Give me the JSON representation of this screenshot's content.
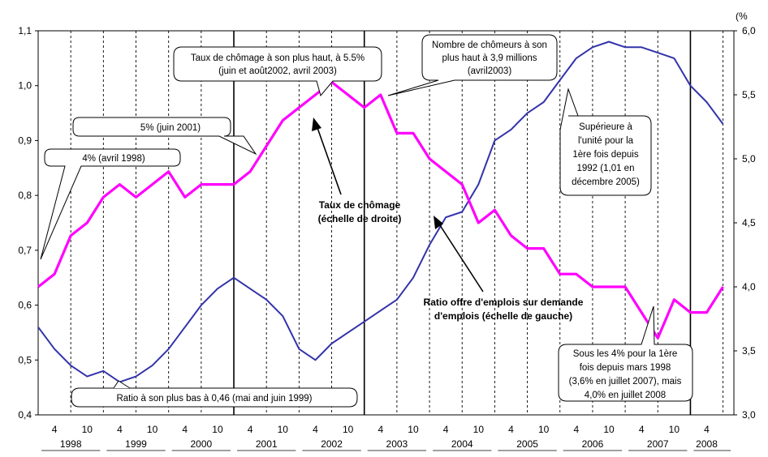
{
  "chart_data": {
    "type": "line",
    "title": "",
    "left_axis": {
      "ticks": [
        "0,4",
        "0,5",
        "0,6",
        "0,7",
        "0,8",
        "0,9",
        "1,0",
        "1,1"
      ],
      "range": [
        0.4,
        1.1
      ]
    },
    "right_axis": {
      "unit": "(%",
      "ticks": [
        "3,0",
        "3,5",
        "4,0",
        "4,5",
        "5,0",
        "5,5",
        "6,0"
      ],
      "range": [
        3.0,
        6.0
      ]
    },
    "x_axis": {
      "month_labels": [
        "4",
        "10"
      ],
      "years": [
        "1998",
        "1999",
        "2000",
        "2001",
        "2002",
        "2003",
        "2004",
        "2005",
        "2006",
        "2007",
        "2008"
      ]
    },
    "series": [
      {
        "name": "Ratio offre d'emplois sur demande d'emplois (échelle de gauche)",
        "axis": "left",
        "color": "#3333aa",
        "x": [
          "1998-01",
          "1998-04",
          "1998-07",
          "1998-10",
          "1999-01",
          "1999-04",
          "1999-07",
          "1999-10",
          "2000-01",
          "2000-04",
          "2000-07",
          "2000-10",
          "2001-01",
          "2001-04",
          "2001-07",
          "2001-10",
          "2002-01",
          "2002-04",
          "2002-07",
          "2002-10",
          "2003-01",
          "2003-04",
          "2003-07",
          "2003-10",
          "2004-01",
          "2004-04",
          "2004-07",
          "2004-10",
          "2005-01",
          "2005-04",
          "2005-07",
          "2005-10",
          "2006-01",
          "2006-04",
          "2006-07",
          "2006-10",
          "2007-01",
          "2007-04",
          "2007-07",
          "2007-10",
          "2008-01",
          "2008-04",
          "2008-07"
        ],
        "values": [
          0.56,
          0.52,
          0.49,
          0.47,
          0.48,
          0.46,
          0.47,
          0.49,
          0.52,
          0.56,
          0.6,
          0.63,
          0.65,
          0.63,
          0.61,
          0.58,
          0.52,
          0.5,
          0.53,
          0.55,
          0.57,
          0.59,
          0.61,
          0.65,
          0.71,
          0.76,
          0.77,
          0.82,
          0.9,
          0.92,
          0.95,
          0.97,
          1.01,
          1.05,
          1.07,
          1.08,
          1.07,
          1.07,
          1.06,
          1.05,
          1.0,
          0.97,
          0.93
        ]
      },
      {
        "name": "Taux de chômage (échelle de droite)",
        "axis": "right",
        "color": "#ff00ff",
        "x": [
          "1998-01",
          "1998-04",
          "1998-07",
          "1998-10",
          "1999-01",
          "1999-04",
          "1999-07",
          "1999-10",
          "2000-01",
          "2000-04",
          "2000-07",
          "2000-10",
          "2001-01",
          "2001-04",
          "2001-07",
          "2001-10",
          "2002-01",
          "2002-04",
          "2002-07",
          "2002-10",
          "2003-01",
          "2003-04",
          "2003-07",
          "2003-10",
          "2004-01",
          "2004-04",
          "2004-07",
          "2004-10",
          "2005-01",
          "2005-04",
          "2005-07",
          "2005-10",
          "2006-01",
          "2006-04",
          "2006-07",
          "2006-10",
          "2007-01",
          "2007-04",
          "2007-07",
          "2007-10",
          "2008-01",
          "2008-04",
          "2008-07"
        ],
        "values": [
          4.0,
          4.1,
          4.4,
          4.5,
          4.7,
          4.8,
          4.7,
          4.8,
          4.9,
          4.7,
          4.8,
          4.8,
          4.8,
          4.9,
          5.1,
          5.3,
          5.4,
          5.5,
          5.6,
          5.5,
          5.4,
          5.5,
          5.2,
          5.2,
          5.0,
          4.9,
          4.8,
          4.5,
          4.6,
          4.4,
          4.3,
          4.3,
          4.1,
          4.1,
          4.0,
          4.0,
          4.0,
          3.8,
          3.6,
          3.9,
          3.8,
          3.8,
          4.0
        ]
      }
    ],
    "annotations": [
      {
        "id": "a1",
        "lines": [
          "4% (avril 1998)"
        ]
      },
      {
        "id": "a2",
        "lines": [
          "5% (juin 2001)"
        ]
      },
      {
        "id": "a3",
        "lines": [
          "Taux de chômage à son plus haut, à 5.5%",
          "(juin et août2002, avril 2003)"
        ]
      },
      {
        "id": "a4",
        "lines": [
          "Nombre de chômeurs à son",
          "plus haut à 3,9 millions",
          "(avril2003)"
        ]
      },
      {
        "id": "a5",
        "lines": [
          "Supérieure à",
          "l'unité pour la",
          "1ère fois depuis",
          "1992 (1,01 en",
          "décembre 2005)"
        ]
      },
      {
        "id": "a6",
        "lines": [
          "Taux de chômage",
          "(échelle de droite)"
        ]
      },
      {
        "id": "a7",
        "lines": [
          "Ratio offre d'emplois sur demande",
          "d'emplois (échelle de gauche)"
        ]
      },
      {
        "id": "a8",
        "lines": [
          "Ratio à son plus bas  à 0,46 (mai and juin 1999)"
        ]
      },
      {
        "id": "a9",
        "lines": [
          "Sous les 4% pour la 1ère",
          "fois depuis mars 1998",
          "(3,6% en juillet 2007), mais",
          "4,0% en juillet 2008"
        ]
      }
    ],
    "grid": "vertical-dashed-quarters",
    "legend": "none"
  }
}
